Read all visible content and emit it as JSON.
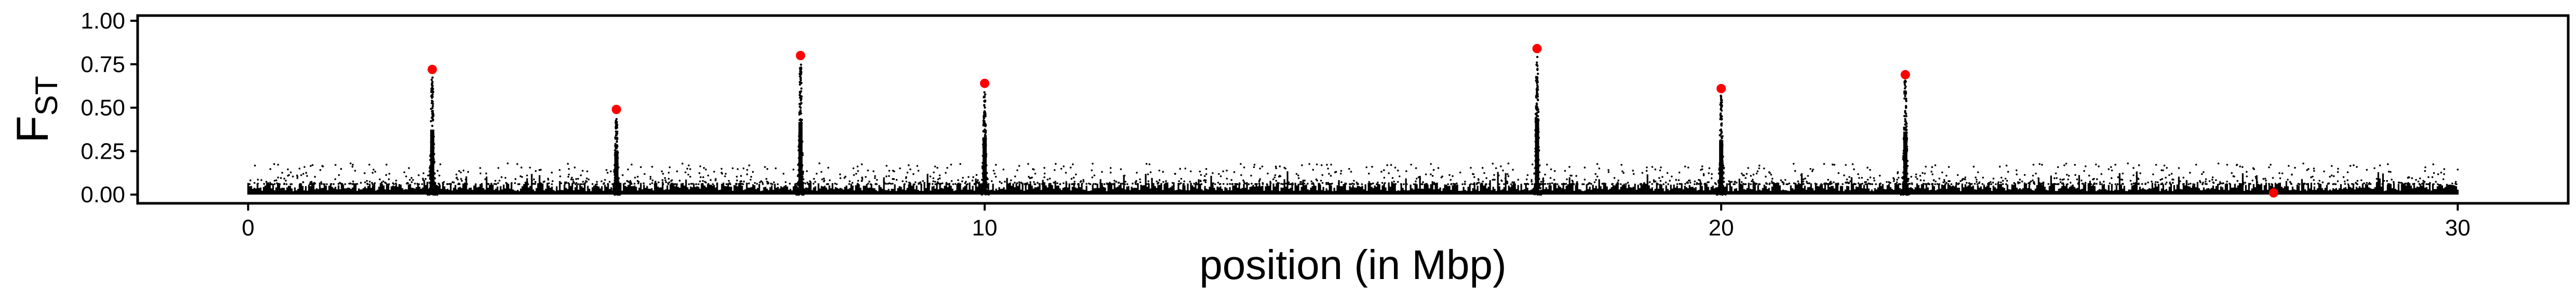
{
  "chart_data": {
    "type": "scatter",
    "title": "",
    "xlabel": "position (in Mbp)",
    "ylabel_main": "F",
    "ylabel_sub": "ST",
    "xlim": [
      -1.5,
      31.5
    ],
    "ylim": [
      -0.05,
      1.03
    ],
    "x_ticks": [
      0,
      10,
      20,
      30
    ],
    "y_ticks": [
      0.0,
      0.25,
      0.5,
      0.75,
      1.0
    ],
    "y_tick_labels": [
      "0.00",
      "0.25",
      "0.50",
      "0.75",
      "1.00"
    ],
    "x_tick_labels": [
      "0",
      "10",
      "20",
      "30"
    ],
    "grid": false,
    "background_color": "#000000",
    "highlight_color": "#ff0000",
    "x_range_data": [
      0,
      30
    ],
    "peaks": [
      {
        "x": 2.5,
        "height": 0.68
      },
      {
        "x": 5.0,
        "height": 0.44
      },
      {
        "x": 7.5,
        "height": 0.76
      },
      {
        "x": 10.0,
        "height": 0.6
      },
      {
        "x": 17.5,
        "height": 0.8
      },
      {
        "x": 20.0,
        "height": 0.57
      },
      {
        "x": 22.5,
        "height": 0.66
      }
    ],
    "highlighted_points": [
      {
        "x": 2.5,
        "y": 0.72
      },
      {
        "x": 5.0,
        "y": 0.49
      },
      {
        "x": 7.5,
        "y": 0.8
      },
      {
        "x": 10.0,
        "y": 0.64
      },
      {
        "x": 17.5,
        "y": 0.84
      },
      {
        "x": 20.0,
        "y": 0.61
      },
      {
        "x": 22.5,
        "y": 0.69
      },
      {
        "x": 27.5,
        "y": 0.01
      }
    ]
  }
}
